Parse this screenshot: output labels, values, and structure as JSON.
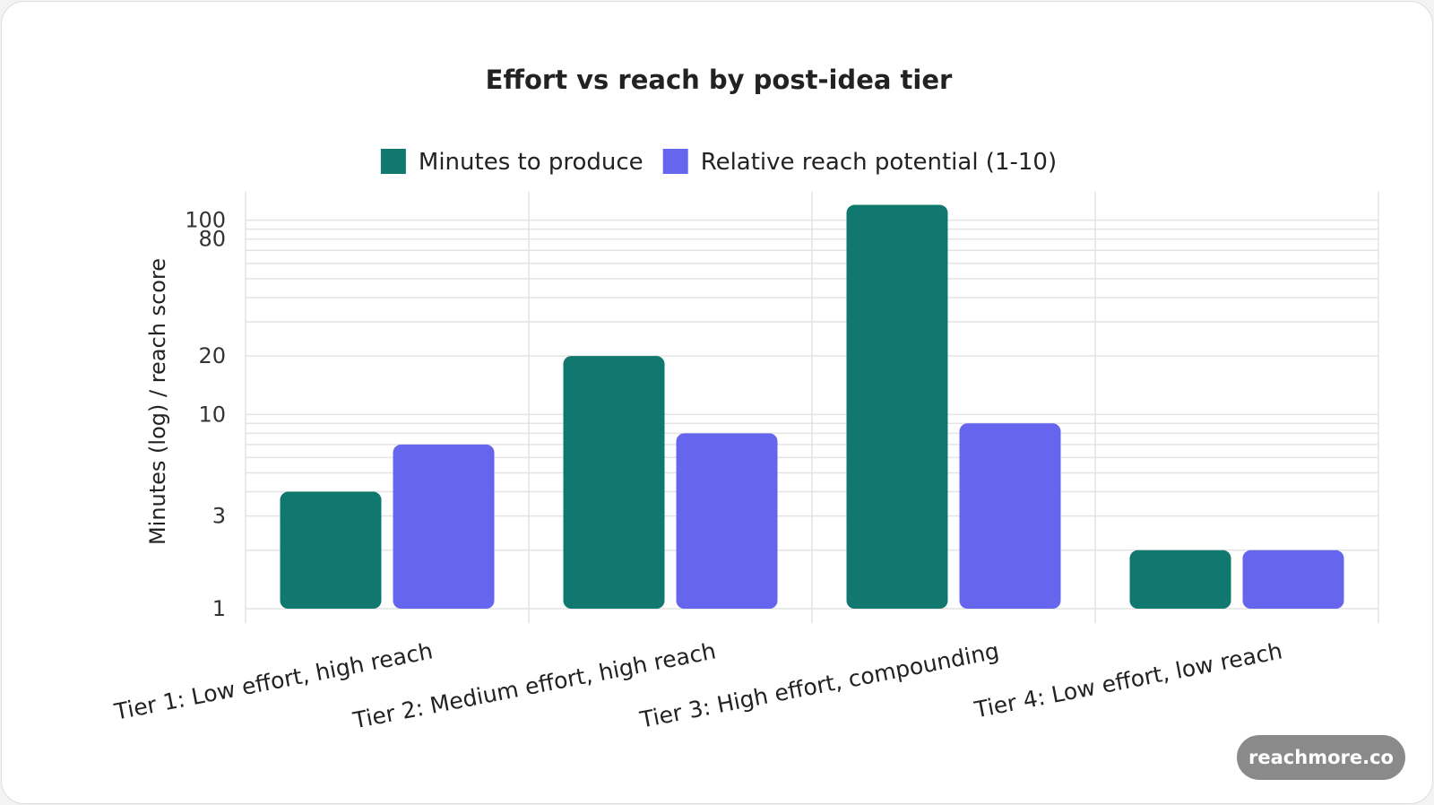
{
  "chart_data": {
    "type": "bar",
    "title": "Effort vs reach by post-idea tier",
    "ylabel": "Minutes (log) / reach score",
    "xlabel": "",
    "yscale": "log",
    "ylim": [
      1,
      140
    ],
    "yticks": [
      1,
      3,
      10,
      20,
      80,
      100
    ],
    "categories": [
      "Tier 1: Low effort, high reach",
      "Tier 2: Medium effort, high reach",
      "Tier 3: High effort, compounding",
      "Tier 4: Low effort, low reach"
    ],
    "series": [
      {
        "name": "Minutes to produce",
        "color": "#10786e",
        "values": [
          4,
          20,
          120,
          2
        ]
      },
      {
        "name": "Relative reach potential (1-10)",
        "color": "#6565ee",
        "values": [
          7,
          8,
          9,
          2
        ]
      }
    ],
    "legend_position": "top-center",
    "grid": true
  },
  "watermark": "reachmore.co"
}
